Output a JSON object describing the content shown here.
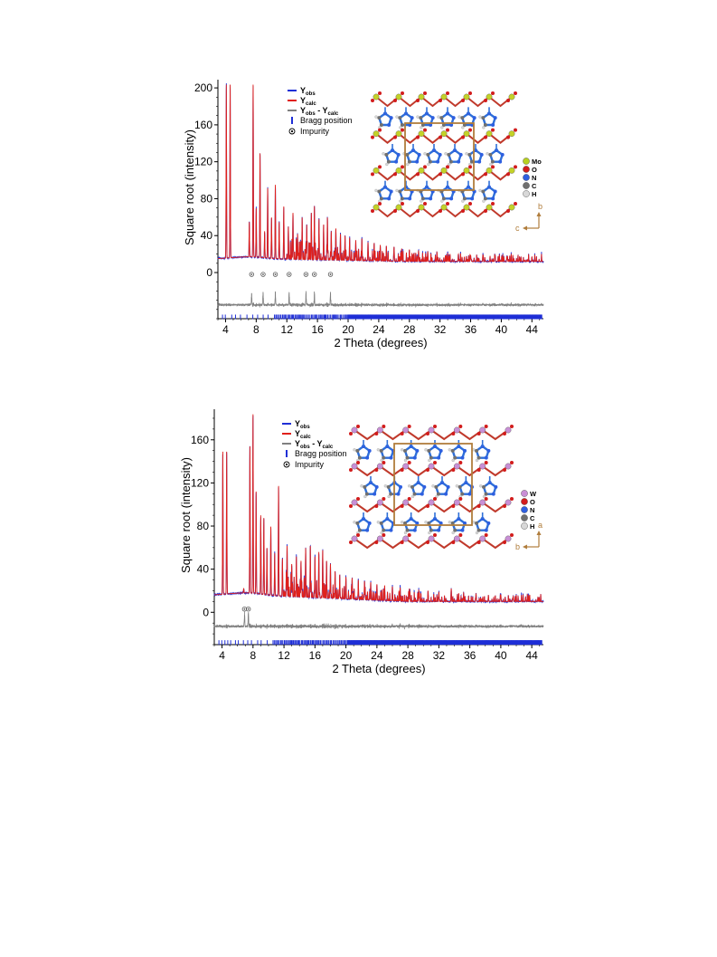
{
  "chart_data": [
    {
      "type": "line",
      "title": "",
      "xlabel": "2 Theta (degrees)",
      "ylabel": "Square root (intensity)",
      "xlim": [
        3,
        45.5
      ],
      "ylim": [
        -50,
        205
      ],
      "x_ticks": [
        4,
        8,
        12,
        16,
        20,
        24,
        28,
        32,
        36,
        40,
        44
      ],
      "y_ticks": [
        0,
        40,
        80,
        120,
        160,
        200
      ],
      "x_tick_labels": [
        "4",
        "8",
        "12",
        "16",
        "20",
        "24",
        "28",
        "32",
        "36",
        "40",
        "44"
      ],
      "y_tick_labels": [
        "0",
        "40",
        "80",
        "120",
        "160",
        "200"
      ],
      "grid": false,
      "legend_position": "top-center",
      "baseline": 15,
      "tail": 12,
      "diff_offset": -35,
      "bragg_offset": -48,
      "series": [
        {
          "key": "obs",
          "color": "#1f2fd6"
        },
        {
          "key": "calc",
          "color": "#e0201b"
        },
        {
          "key": "diff",
          "color": "#808080"
        }
      ],
      "peaks": [
        {
          "x": 4.1,
          "y": 205
        },
        {
          "x": 4.6,
          "y": 205
        },
        {
          "x": 7.1,
          "y": 55
        },
        {
          "x": 7.6,
          "y": 205
        },
        {
          "x": 8.0,
          "y": 70
        },
        {
          "x": 8.5,
          "y": 130
        },
        {
          "x": 9.1,
          "y": 45
        },
        {
          "x": 9.5,
          "y": 92
        },
        {
          "x": 10.0,
          "y": 60
        },
        {
          "x": 10.5,
          "y": 95
        },
        {
          "x": 11.0,
          "y": 55
        },
        {
          "x": 11.6,
          "y": 72
        },
        {
          "x": 12.2,
          "y": 50
        },
        {
          "x": 12.8,
          "y": 65
        },
        {
          "x": 13.4,
          "y": 42
        },
        {
          "x": 14.0,
          "y": 60
        },
        {
          "x": 14.6,
          "y": 52
        },
        {
          "x": 15.2,
          "y": 65
        },
        {
          "x": 15.6,
          "y": 72
        },
        {
          "x": 16.2,
          "y": 58
        },
        {
          "x": 16.8,
          "y": 52
        },
        {
          "x": 17.3,
          "y": 60
        },
        {
          "x": 17.8,
          "y": 45
        },
        {
          "x": 18.4,
          "y": 48
        },
        {
          "x": 19.0,
          "y": 42
        },
        {
          "x": 19.6,
          "y": 40
        },
        {
          "x": 20.2,
          "y": 38
        },
        {
          "x": 21.0,
          "y": 35
        },
        {
          "x": 21.8,
          "y": 37
        },
        {
          "x": 22.6,
          "y": 33
        },
        {
          "x": 23.4,
          "y": 32
        },
        {
          "x": 24.2,
          "y": 30
        },
        {
          "x": 25.0,
          "y": 29
        },
        {
          "x": 26.0,
          "y": 28
        },
        {
          "x": 27.0,
          "y": 26
        },
        {
          "x": 28.0,
          "y": 25
        },
        {
          "x": 29.2,
          "y": 24
        },
        {
          "x": 30.4,
          "y": 23
        },
        {
          "x": 31.6,
          "y": 22
        },
        {
          "x": 33.0,
          "y": 21
        },
        {
          "x": 34.4,
          "y": 20
        },
        {
          "x": 36.0,
          "y": 19
        },
        {
          "x": 37.6,
          "y": 19
        },
        {
          "x": 39.2,
          "y": 18
        },
        {
          "x": 40.8,
          "y": 18
        },
        {
          "x": 42.4,
          "y": 17
        },
        {
          "x": 44.0,
          "y": 17
        }
      ],
      "impurities": [
        7.4,
        8.9,
        10.5,
        12.3,
        14.5,
        15.6,
        17.7
      ],
      "impurity_y": -2,
      "legend": {
        "obs": {
          "main": "Y",
          "sub": "obs"
        },
        "calc": {
          "main": "Y",
          "sub": "calc"
        },
        "diff": {
          "main1": "Y",
          "sub1": "obs",
          "mid": " - Y",
          "sub2": "calc"
        },
        "bragg": "Bragg position",
        "impurity": "Impurity"
      },
      "inset": {
        "elements": [
          {
            "symbol": "Mo",
            "color": "#b8d020"
          },
          {
            "symbol": "O",
            "color": "#d21c1c"
          },
          {
            "symbol": "N",
            "color": "#2e5fe0"
          },
          {
            "symbol": "C",
            "color": "#707070"
          },
          {
            "symbol": "H",
            "color": "#d8d8d8"
          }
        ],
        "metal_color": "#c4d228",
        "axis_up": "b",
        "axis_side": "c"
      }
    },
    {
      "type": "line",
      "title": "",
      "xlabel": "2 Theta (degrees)",
      "ylabel": "Square root (intensity)",
      "xlim": [
        3,
        45.5
      ],
      "ylim": [
        -30,
        185
      ],
      "x_ticks": [
        4,
        8,
        12,
        16,
        20,
        24,
        28,
        32,
        36,
        40,
        44
      ],
      "y_ticks": [
        0,
        40,
        80,
        120,
        160
      ],
      "x_tick_labels": [
        "4",
        "8",
        "12",
        "16",
        "20",
        "24",
        "28",
        "32",
        "36",
        "40",
        "44"
      ],
      "y_tick_labels": [
        "0",
        "40",
        "80",
        "120",
        "160"
      ],
      "grid": false,
      "legend_position": "top-center",
      "baseline": 16,
      "tail": 10,
      "diff_offset": -13,
      "bragg_offset": -28,
      "series": [
        {
          "key": "obs",
          "color": "#1f2fd6"
        },
        {
          "key": "calc",
          "color": "#e0201b"
        },
        {
          "key": "diff",
          "color": "#808080"
        }
      ],
      "peaks": [
        {
          "x": 4.1,
          "y": 150
        },
        {
          "x": 4.6,
          "y": 150
        },
        {
          "x": 6.8,
          "y": 22
        },
        {
          "x": 7.6,
          "y": 155
        },
        {
          "x": 8.0,
          "y": 185
        },
        {
          "x": 8.4,
          "y": 112
        },
        {
          "x": 9.0,
          "y": 90
        },
        {
          "x": 9.4,
          "y": 88
        },
        {
          "x": 9.8,
          "y": 60
        },
        {
          "x": 10.3,
          "y": 80
        },
        {
          "x": 10.8,
          "y": 55
        },
        {
          "x": 11.3,
          "y": 118
        },
        {
          "x": 11.8,
          "y": 50
        },
        {
          "x": 12.4,
          "y": 62
        },
        {
          "x": 13.0,
          "y": 45
        },
        {
          "x": 13.6,
          "y": 52
        },
        {
          "x": 14.2,
          "y": 48
        },
        {
          "x": 14.8,
          "y": 60
        },
        {
          "x": 15.4,
          "y": 62
        },
        {
          "x": 16.0,
          "y": 52
        },
        {
          "x": 16.5,
          "y": 56
        },
        {
          "x": 17.0,
          "y": 58
        },
        {
          "x": 17.5,
          "y": 48
        },
        {
          "x": 18.0,
          "y": 45
        },
        {
          "x": 18.6,
          "y": 38
        },
        {
          "x": 19.2,
          "y": 35
        },
        {
          "x": 20.0,
          "y": 33
        },
        {
          "x": 20.8,
          "y": 32
        },
        {
          "x": 21.6,
          "y": 30
        },
        {
          "x": 22.4,
          "y": 29
        },
        {
          "x": 23.2,
          "y": 28
        },
        {
          "x": 24.0,
          "y": 26
        },
        {
          "x": 25.0,
          "y": 25
        },
        {
          "x": 26.0,
          "y": 24
        },
        {
          "x": 27.0,
          "y": 23
        },
        {
          "x": 28.2,
          "y": 22
        },
        {
          "x": 29.4,
          "y": 21
        },
        {
          "x": 30.6,
          "y": 20
        },
        {
          "x": 32.0,
          "y": 19
        },
        {
          "x": 33.6,
          "y": 22
        },
        {
          "x": 35.2,
          "y": 18
        },
        {
          "x": 36.8,
          "y": 17
        },
        {
          "x": 38.4,
          "y": 16
        },
        {
          "x": 40.0,
          "y": 16
        },
        {
          "x": 41.6,
          "y": 15
        },
        {
          "x": 43.2,
          "y": 14
        },
        {
          "x": 44.8,
          "y": 14
        }
      ],
      "impurities": [
        6.9,
        7.4
      ],
      "impurity_y": 3,
      "legend": {
        "obs": {
          "main": "Y",
          "sub": "obs"
        },
        "calc": {
          "main": "Y",
          "sub": "calc"
        },
        "diff": {
          "main1": "Y",
          "sub1": "obs",
          "mid": " - Y",
          "sub2": "calc"
        },
        "bragg": "Bragg position",
        "impurity": "Impurity"
      },
      "inset": {
        "elements": [
          {
            "symbol": "W",
            "color": "#c98fd6"
          },
          {
            "symbol": "O",
            "color": "#d21c1c"
          },
          {
            "symbol": "N",
            "color": "#2e5fe0"
          },
          {
            "symbol": "C",
            "color": "#707070"
          },
          {
            "symbol": "H",
            "color": "#d8d8d8"
          }
        ],
        "metal_color": "#c98fd6",
        "axis_up": "a",
        "axis_side": "b"
      }
    }
  ]
}
